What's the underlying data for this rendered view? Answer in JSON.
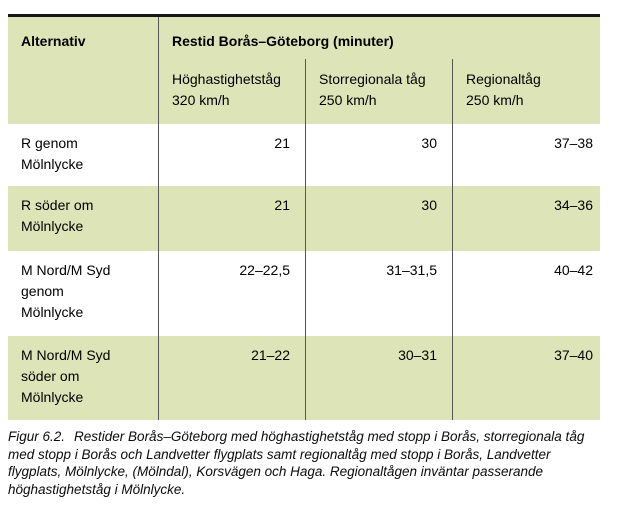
{
  "table": {
    "corner_header": "Alternativ",
    "main_header": "Restid Borås–Göteborg (minuter)",
    "sub_headers": [
      "Höghastighetståg\n320 km/h",
      "Storregionala tåg\n250 km/h",
      "Regionaltåg\n250 km/h"
    ],
    "rows": [
      {
        "label": "R genom\nMölnlycke",
        "values": [
          "21",
          "30",
          "37–38"
        ]
      },
      {
        "label": "R söder om\nMölnlycke",
        "values": [
          "21",
          "30",
          "34–36"
        ]
      },
      {
        "label": "M Nord/M Syd\ngenom\nMölnlycke",
        "values": [
          "22–22,5",
          "31–31,5",
          "40–42"
        ]
      },
      {
        "label": "M Nord/M Syd\nsöder om\nMölnlycke",
        "values": [
          "21–22",
          "30–31",
          "37–40"
        ]
      }
    ]
  },
  "caption": {
    "label": "Figur 6.2.",
    "text": "Restider Borås–Göteborg med höghastighetståg med stopp i Borås, storregionala tåg med stopp i Borås och Landvetter flygplats samt regionaltåg med stopp i Borås, Landvetter flygplats, Mölnlycke, (Mölndal), Korsvägen och Haga. Regionaltågen inväntar passerande höghastighetståg i Mölnlycke."
  },
  "colors": {
    "band_green": "#dde5b8",
    "top_border": "#161616",
    "column_divider": "#565656"
  }
}
